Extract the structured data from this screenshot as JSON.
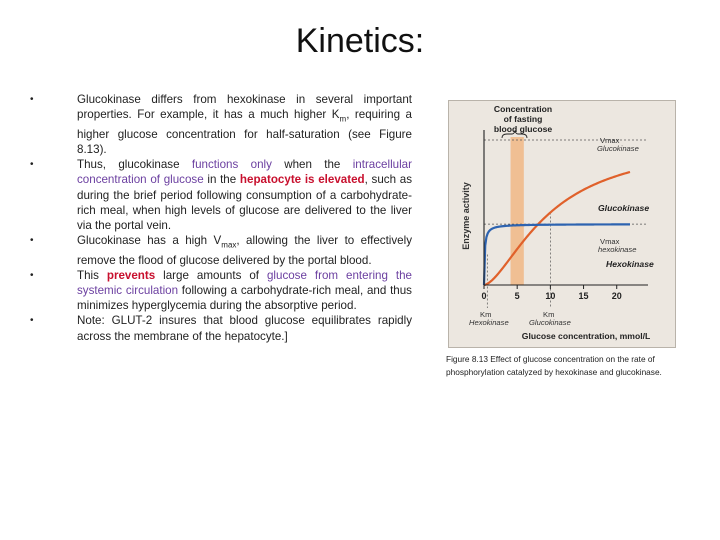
{
  "slide": {
    "title": "Kinetics:"
  },
  "bullets": [
    {
      "segments": [
        {
          "text": "Glucokinase differs from hexokinase in several important properties. For example, it has a much higher K",
          "style": "plain"
        },
        {
          "text": "m",
          "style": "sub"
        },
        {
          "text": ", requiring a higher glucose concentration for half-saturation (see Figure 8.13).",
          "style": "plain"
        }
      ]
    },
    {
      "segments": [
        {
          "text": "Thus, glucokinase ",
          "style": "plain"
        },
        {
          "text": "functions only",
          "style": "purple"
        },
        {
          "text": " when the ",
          "style": "plain"
        },
        {
          "text": "intracellular concentration of glucose",
          "style": "purple"
        },
        {
          "text": " in the ",
          "style": "plain"
        },
        {
          "text": "hepatocyte is elevated",
          "style": "bold-red"
        },
        {
          "text": ", such as during the brief period following consumption of a carbohydrate-rich meal, when high levels of glucose are delivered to the liver via the portal vein.",
          "style": "plain"
        }
      ]
    },
    {
      "segments": [
        {
          "text": "Glucokinase has a high V",
          "style": "plain"
        },
        {
          "text": "max",
          "style": "sub"
        },
        {
          "text": ", allowing the liver to effectively remove the flood of glucose delivered by the portal blood.",
          "style": "plain"
        }
      ]
    },
    {
      "segments": [
        {
          "text": "This ",
          "style": "plain"
        },
        {
          "text": "prevents",
          "style": "bold-red"
        },
        {
          "text": " large amounts of ",
          "style": "plain"
        },
        {
          "text": "glucose from entering the systemic circulation",
          "style": "purple"
        },
        {
          "text": " following a carbohydrate-rich meal, and thus minimizes hyperglycemia during the absorptive period.",
          "style": "plain"
        }
      ]
    },
    {
      "segments": [
        {
          "text": "Note: GLUT-2 insures that blood glucose equilibrates rapidly across the membrane of the hepatocyte.]",
          "style": "plain"
        }
      ]
    }
  ],
  "figure": {
    "band_label_lines": [
      "Concentration",
      "of fasting",
      "blood glucose"
    ],
    "ylabel": "Enzyme activity",
    "xlabel": "Glucose concentration, mmol/L",
    "x_ticks": [
      "0",
      "5",
      "10",
      "15",
      "20"
    ],
    "vmax_gk_label": "Vmax",
    "vmax_gk_sub": "Glucokinase",
    "vmax_hk_label": "Vmax",
    "vmax_hk_sub": "hexokinase",
    "series_labels": {
      "glucokinase": "Glucokinase",
      "hexokinase": "Hexokinase"
    },
    "km_hk_label": "Km",
    "km_hk_sub": "Hexokinase",
    "km_gk_label": "Km",
    "km_gk_sub": "Glucokinase",
    "colors": {
      "glucokinase": "#e0612b",
      "hexokinase": "#2d63b0",
      "band": "#f2b27a",
      "panel": "#ece7e0"
    }
  },
  "caption": "Figure 8.13 Effect of glucose concentration on the rate of phosphorylation catalyzed by hexokinase and glucokinase.",
  "chart_data": {
    "type": "line",
    "xlabel": "Glucose concentration, mmol/L",
    "ylabel": "Enzyme activity",
    "xlim": [
      0,
      22
    ],
    "x_ticks": [
      0,
      5,
      10,
      15,
      20
    ],
    "fasting_glucose_band": [
      4,
      6
    ],
    "series": [
      {
        "name": "Glucokinase",
        "vmax": 1.0,
        "km": 10,
        "color": "#e0612b"
      },
      {
        "name": "Hexokinase",
        "vmax": 0.42,
        "km": 0.1,
        "color": "#2d63b0"
      }
    ]
  }
}
